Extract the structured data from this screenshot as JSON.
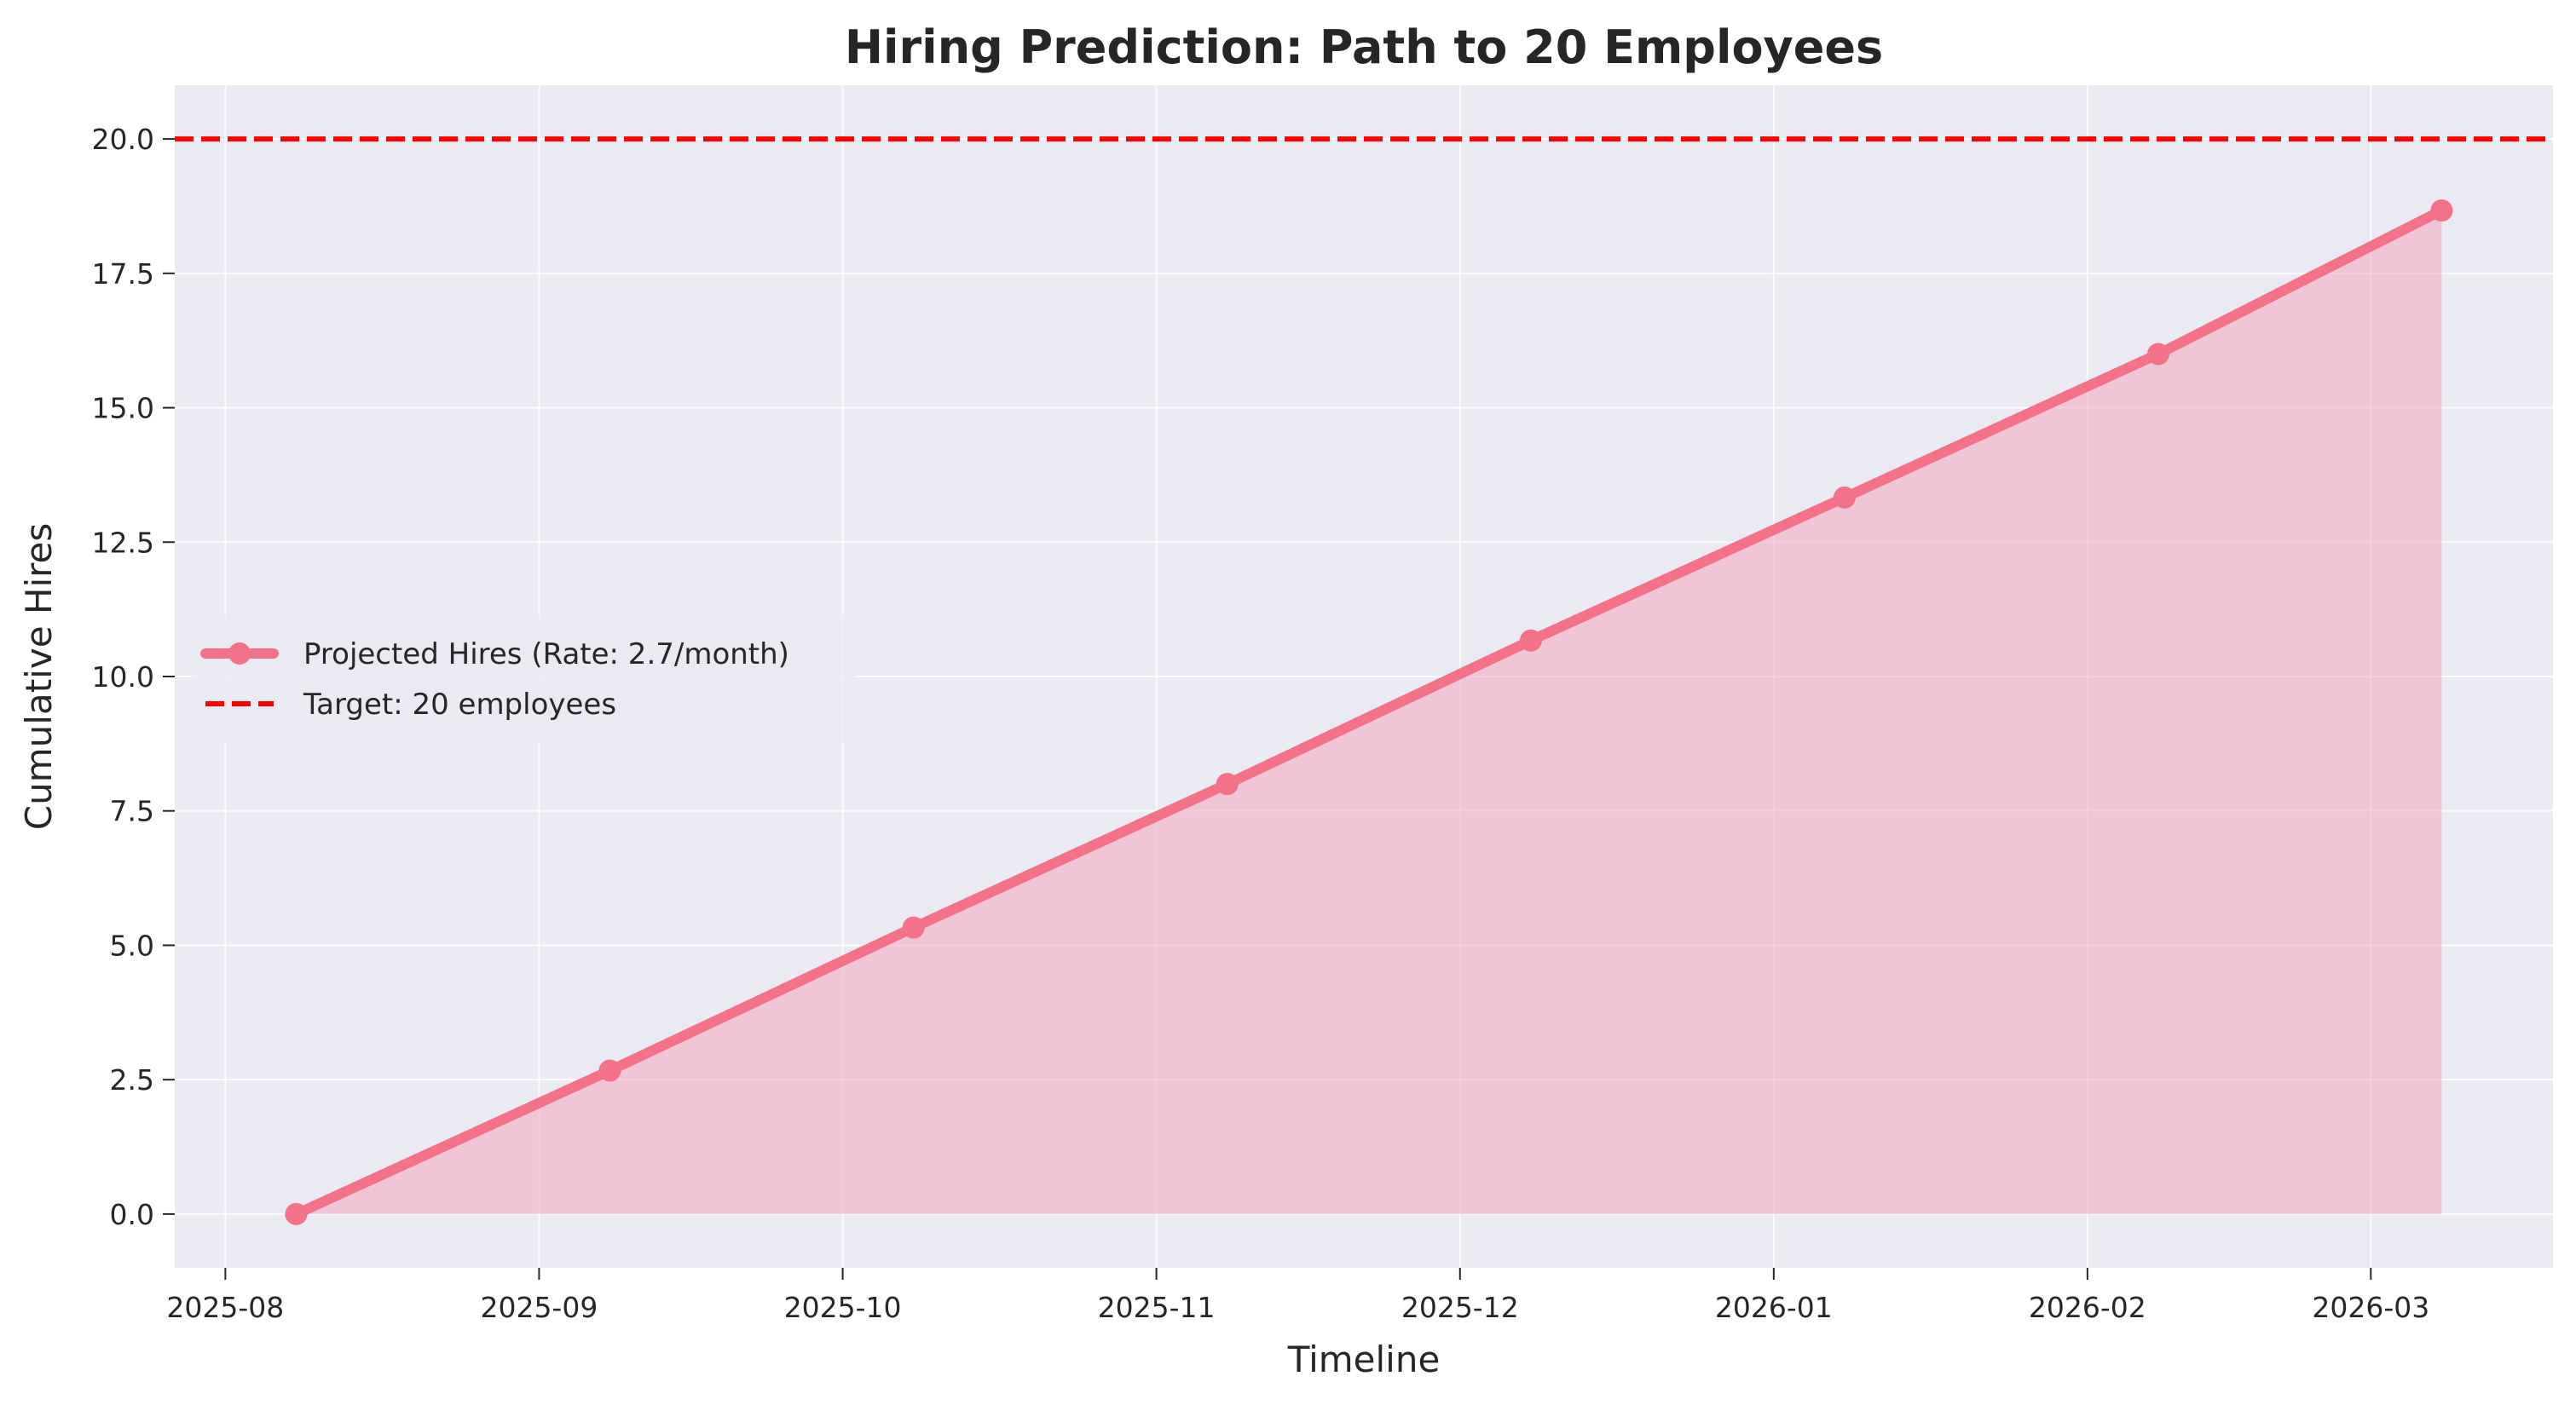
{
  "chart_data": {
    "type": "line",
    "title": "Hiring Prediction: Path to 20 Employees",
    "xlabel": "Timeline",
    "ylabel": "Cumulative Hires",
    "x": [
      "2025-08-08",
      "2025-09-08",
      "2025-10-08",
      "2025-11-08",
      "2025-12-08",
      "2026-01-08",
      "2026-02-08",
      "2026-03-08"
    ],
    "series": [
      {
        "name": "Projected Hires (Rate: 2.7/month)",
        "values": [
          0.0,
          2.67,
          5.33,
          8.0,
          10.67,
          13.33,
          16.0,
          18.67
        ],
        "color": "#f37189",
        "fill_color": "#f0a8c0",
        "marker": "circle",
        "filled_area": true
      }
    ],
    "reference_lines": [
      {
        "name": "Target: 20 employees",
        "value": 20,
        "orientation": "horizontal",
        "color": "#ff0000",
        "style": "dashed"
      }
    ],
    "x_ticks": [
      "2025-08",
      "2025-09",
      "2025-10",
      "2025-11",
      "2025-12",
      "2026-01",
      "2026-02",
      "2026-03"
    ],
    "x_tick_dates": [
      "2025-08-01",
      "2025-09-01",
      "2025-10-01",
      "2025-11-01",
      "2025-12-01",
      "2026-01-01",
      "2026-02-01",
      "2026-03-01"
    ],
    "y_ticks": [
      "0.0",
      "2.5",
      "5.0",
      "7.5",
      "10.0",
      "12.5",
      "15.0",
      "17.5",
      "20.0"
    ],
    "y_tick_values": [
      0,
      2.5,
      5,
      7.5,
      10,
      12.5,
      15,
      17.5,
      20
    ],
    "xlim": [
      "2025-07-27",
      "2026-03-19"
    ],
    "ylim": [
      -1.0,
      21.0
    ],
    "grid": true,
    "legend": "center-left",
    "colors": {
      "plot_background": "#eaeaf2",
      "grid": "#ffffff",
      "text": "#262626"
    }
  }
}
